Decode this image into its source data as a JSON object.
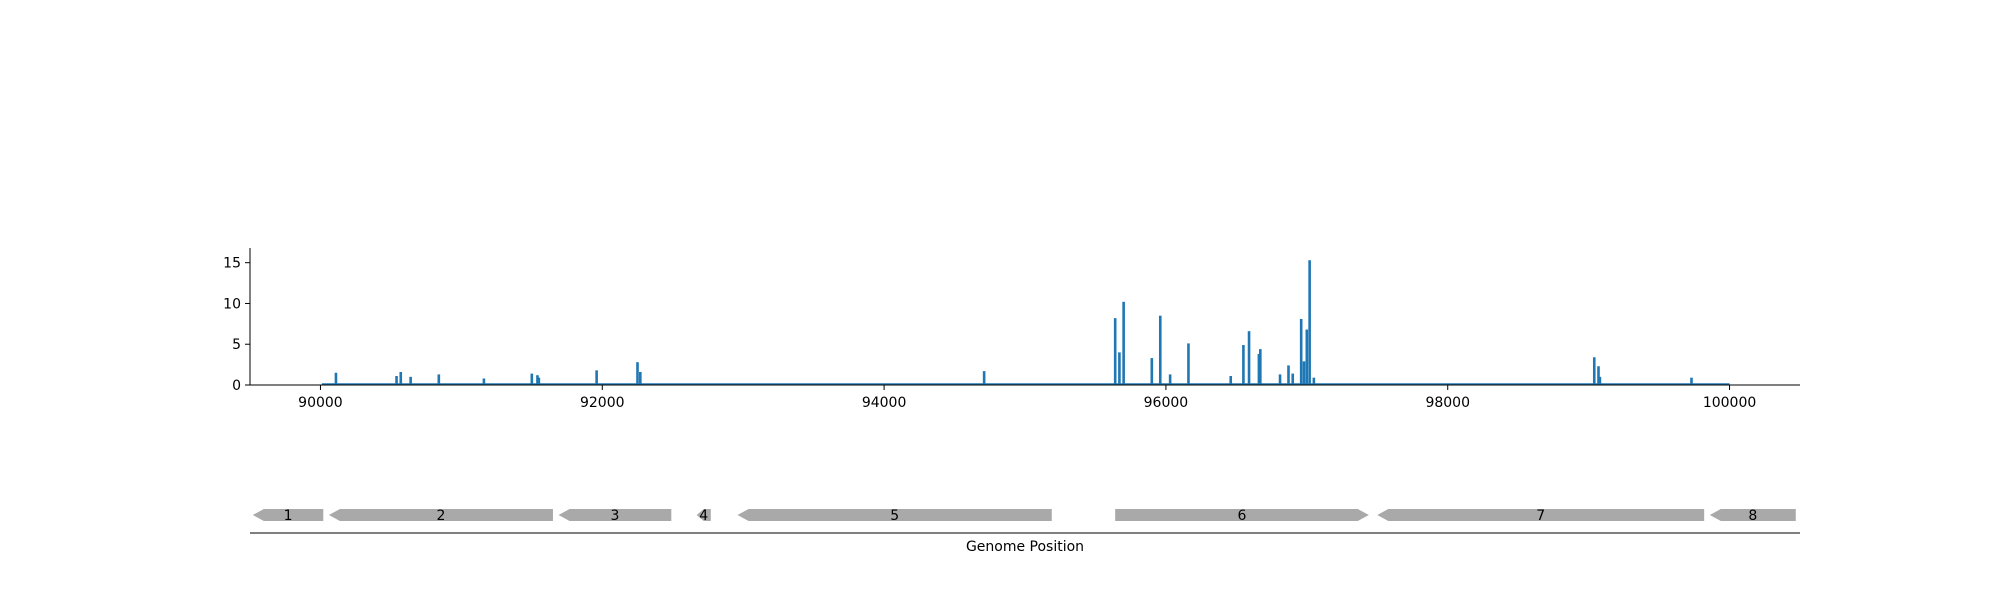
{
  "chart_data": {
    "type": "bar",
    "xlabel": "Genome Position",
    "ylabel": "",
    "title": "",
    "xlim": [
      89500,
      100500
    ],
    "ylim": [
      0,
      16.8
    ],
    "xticks": [
      90000,
      92000,
      94000,
      96000,
      98000,
      100000
    ],
    "yticks": [
      0,
      5,
      10,
      15
    ],
    "baseline": [
      90010,
      100000
    ],
    "grid": false,
    "color": "#1f77b4",
    "x": [
      90110,
      90540,
      90570,
      90640,
      90840,
      91160,
      91500,
      91540,
      91550,
      91960,
      92250,
      92270,
      94710,
      95640,
      95670,
      95700,
      95900,
      95960,
      96030,
      96160,
      96460,
      96550,
      96590,
      96660,
      96670,
      96810,
      96870,
      96900,
      96960,
      96980,
      97000,
      97020,
      97050,
      99040,
      99070,
      99080,
      99730
    ],
    "values": [
      1.5,
      1.1,
      1.6,
      1.0,
      1.3,
      0.8,
      1.4,
      1.2,
      0.9,
      1.8,
      2.8,
      1.6,
      1.7,
      8.2,
      4.0,
      10.2,
      3.3,
      8.5,
      1.3,
      5.1,
      1.1,
      4.9,
      6.6,
      3.8,
      4.4,
      1.3,
      2.4,
      1.4,
      8.1,
      2.9,
      6.8,
      15.3,
      0.9,
      3.4,
      2.3,
      1.0,
      0.9
    ],
    "genes": {
      "color": "#a9a9a9",
      "items": [
        {
          "label": "1",
          "start": 89520,
          "end": 90020,
          "strand": "-"
        },
        {
          "label": "2",
          "start": 90060,
          "end": 91650,
          "strand": "-"
        },
        {
          "label": "3",
          "start": 91690,
          "end": 92490,
          "strand": "-"
        },
        {
          "label": "4",
          "start": 92670,
          "end": 92770,
          "strand": "-"
        },
        {
          "label": "5",
          "start": 92960,
          "end": 95190,
          "strand": "-"
        },
        {
          "label": "6",
          "start": 95640,
          "end": 97440,
          "strand": "+"
        },
        {
          "label": "7",
          "start": 97500,
          "end": 99820,
          "strand": "-"
        },
        {
          "label": "8",
          "start": 99860,
          "end": 100470,
          "strand": "-"
        }
      ]
    }
  }
}
